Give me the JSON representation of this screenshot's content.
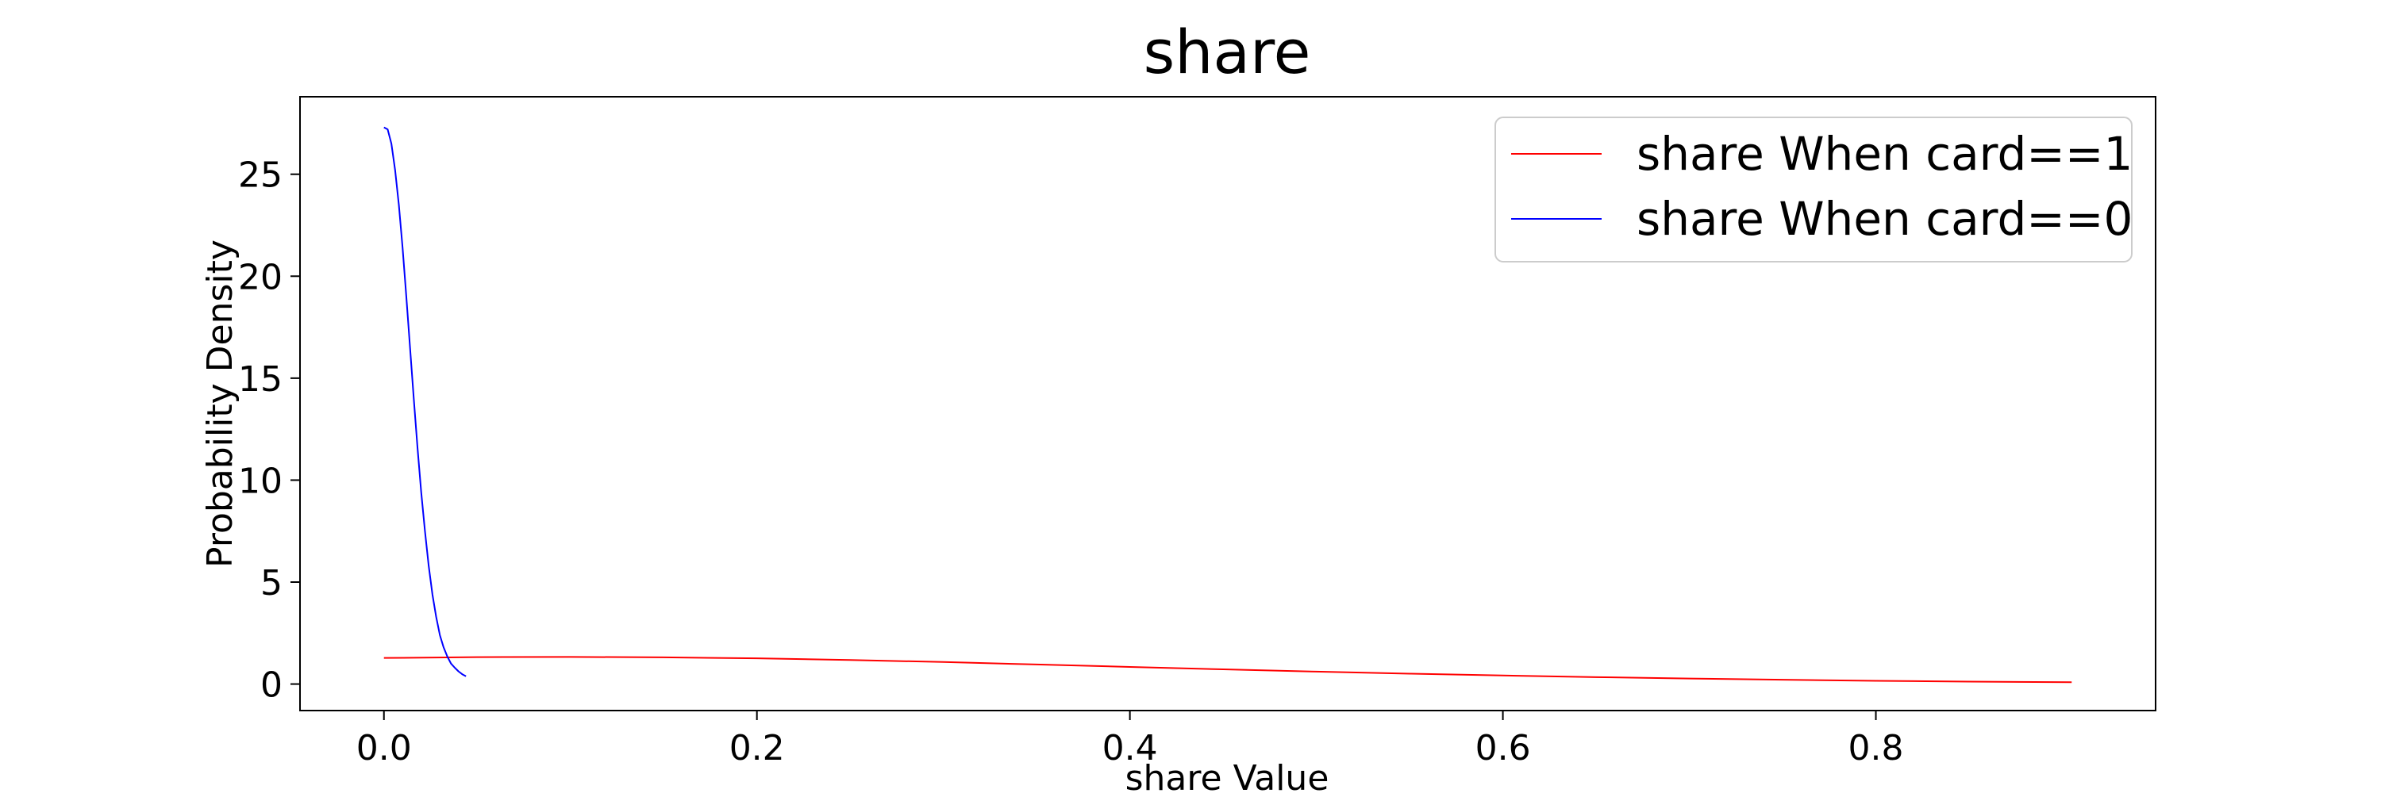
{
  "chart_data": {
    "type": "line",
    "title": "share",
    "xlabel": "share Value",
    "ylabel": "Probability Density",
    "xlim": [
      -0.045,
      0.95
    ],
    "ylim": [
      -1.3,
      28.8
    ],
    "xticks": [
      0.0,
      0.2,
      0.4,
      0.6,
      0.8
    ],
    "xtick_labels": [
      "0.0",
      "0.2",
      "0.4",
      "0.6",
      "0.8"
    ],
    "yticks": [
      0,
      5,
      10,
      15,
      20,
      25
    ],
    "ytick_labels": [
      "0",
      "5",
      "10",
      "15",
      "20",
      "25"
    ],
    "grid": false,
    "legend_position": "upper right",
    "series": [
      {
        "name": "share When card==1",
        "color": "#ff0000",
        "x": [
          0.0,
          0.05,
          0.1,
          0.15,
          0.2,
          0.25,
          0.3,
          0.35,
          0.4,
          0.45,
          0.5,
          0.55,
          0.6,
          0.65,
          0.7,
          0.75,
          0.8,
          0.85,
          0.905
        ],
        "y": [
          1.28,
          1.32,
          1.33,
          1.31,
          1.26,
          1.18,
          1.08,
          0.96,
          0.84,
          0.72,
          0.61,
          0.51,
          0.42,
          0.34,
          0.27,
          0.21,
          0.16,
          0.12,
          0.09
        ]
      },
      {
        "name": "share When card==0",
        "color": "#0000ff",
        "x": [
          0.0,
          0.002,
          0.004,
          0.006,
          0.008,
          0.01,
          0.012,
          0.014,
          0.016,
          0.018,
          0.02,
          0.022,
          0.024,
          0.026,
          0.028,
          0.03,
          0.032,
          0.034,
          0.036,
          0.038,
          0.04,
          0.042,
          0.044
        ],
        "y": [
          27.3,
          27.2,
          26.5,
          25.2,
          23.5,
          21.4,
          19.0,
          16.5,
          14.0,
          11.6,
          9.4,
          7.5,
          5.8,
          4.4,
          3.3,
          2.4,
          1.8,
          1.35,
          1.0,
          0.8,
          0.62,
          0.48,
          0.38
        ]
      }
    ]
  }
}
